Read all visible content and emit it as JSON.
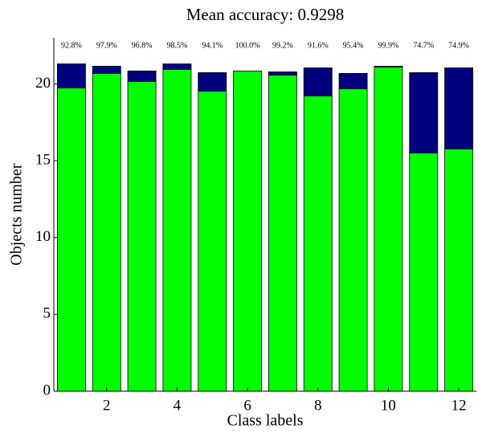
{
  "chart_data": {
    "type": "stacked_bar",
    "title": "Mean accuracy: 0.9298",
    "xlabel": "Class labels",
    "ylabel": "Objects number",
    "x": [
      1,
      2,
      3,
      4,
      5,
      6,
      7,
      8,
      9,
      10,
      11,
      12
    ],
    "xlim": [
      0.5,
      12.5
    ],
    "xticks": [
      2,
      4,
      6,
      8,
      10,
      12
    ],
    "ylim": [
      0,
      23
    ],
    "yticks": [
      0,
      5,
      10,
      15,
      20
    ],
    "series": [
      {
        "color": "#00ff00",
        "values": [
          19.74,
          20.68,
          20.16,
          20.94,
          19.53,
          20.84,
          20.57,
          19.22,
          19.69,
          21.1,
          15.51,
          15.77
        ]
      },
      {
        "color": "#00007f",
        "values": [
          1.56,
          0.47,
          0.68,
          0.36,
          1.2,
          0,
          0.21,
          1.82,
          0.99,
          0.05,
          5.22,
          5.27
        ]
      }
    ],
    "accuracy_labels": [
      "92.8%",
      "97.9%",
      "96.8%",
      "98.5%",
      "94.1%",
      "100.0%",
      "99.2%",
      "91.6%",
      "95.4%",
      "99.9%",
      "74.7%",
      "74.9%"
    ]
  }
}
